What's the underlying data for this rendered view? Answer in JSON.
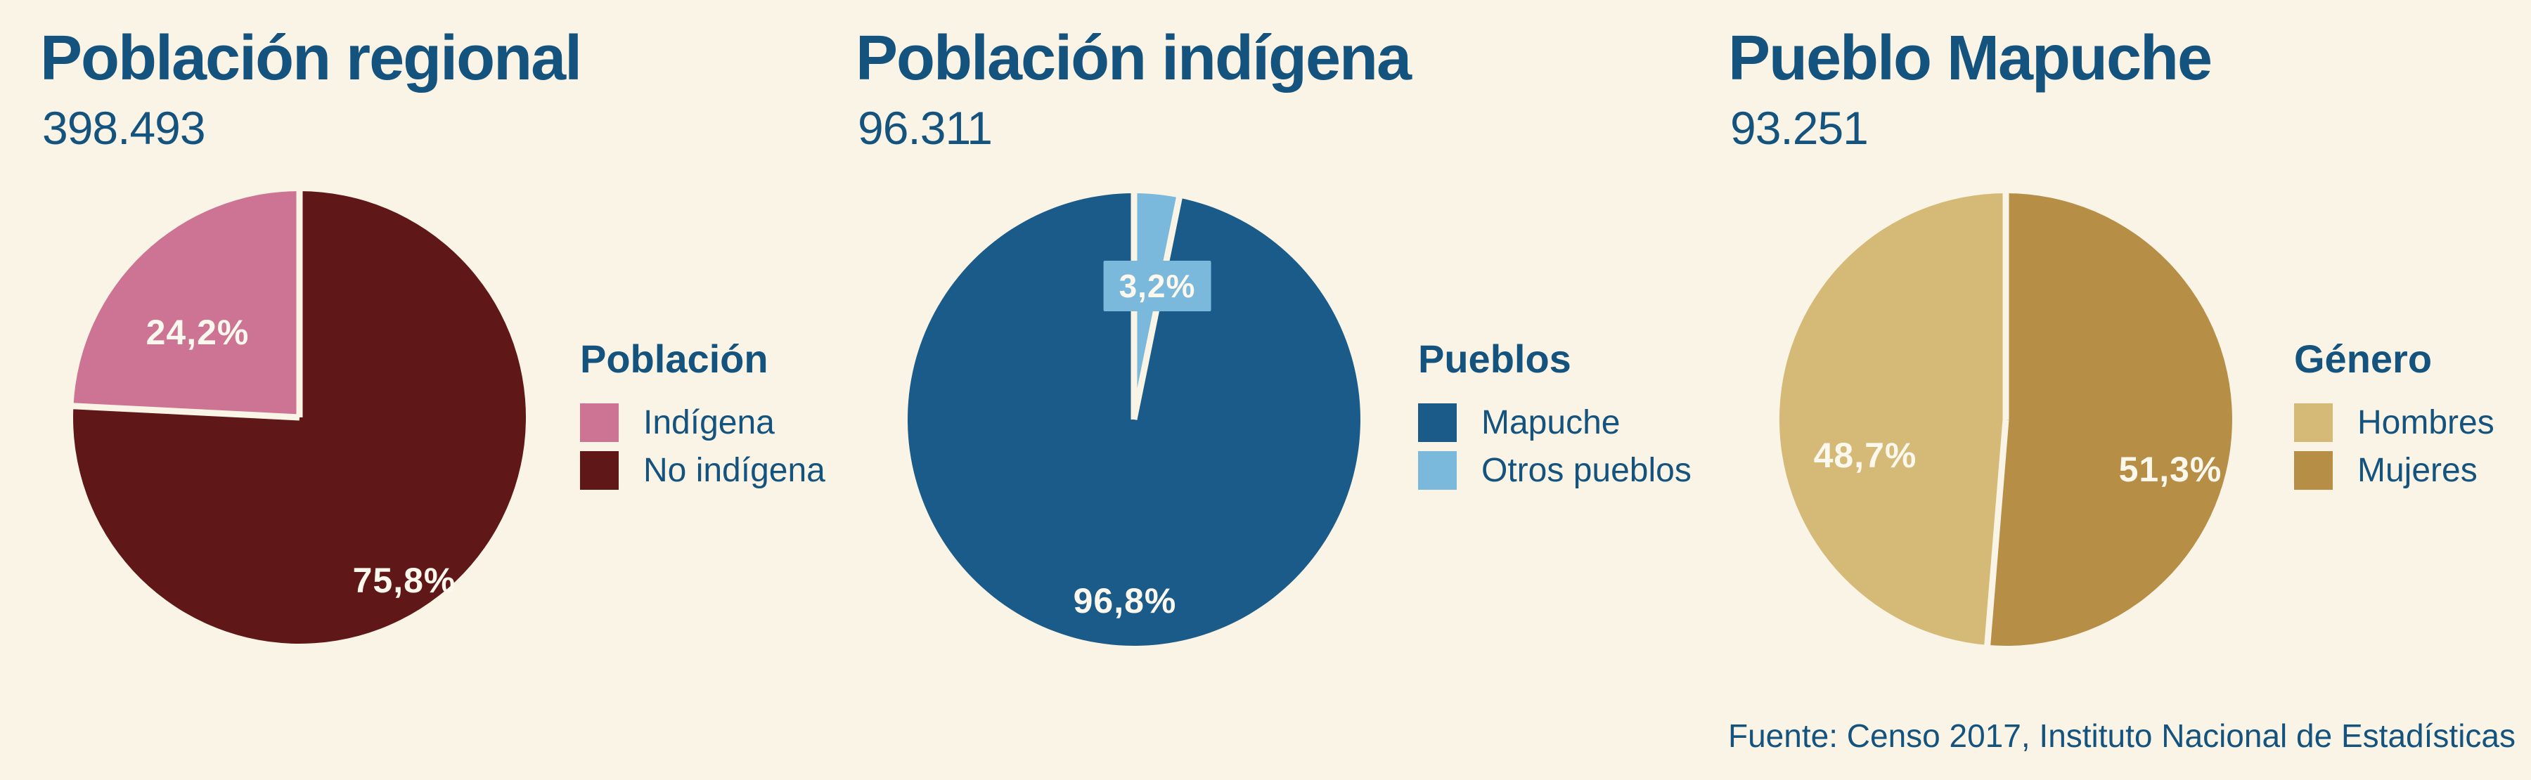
{
  "page": {
    "background": "#F9F4E5",
    "accent_blue": "#15537F",
    "label_text_color": "#FCF8ED",
    "footer": "Fuente: Censo 2017, Instituto Nacional de Estadísticas"
  },
  "chart_data": [
    {
      "type": "pie",
      "title": "Población regional",
      "total": "398.493",
      "legend_title": "Población",
      "start": "top",
      "direction": "clockwise",
      "categories": [
        "No indígena",
        "Indígena"
      ],
      "values": [
        75.8,
        24.2
      ],
      "slices": [
        {
          "label": "No indígena",
          "value": 75.8,
          "pct": "75,8%",
          "color": "#5F1718"
        },
        {
          "label": "Indígena",
          "value": 24.2,
          "pct": "24,2%",
          "color": "#CD7494"
        }
      ]
    },
    {
      "type": "pie",
      "title": "Población indígena",
      "total": "96.311",
      "legend_title": "Pueblos",
      "start": "top",
      "direction": "clockwise",
      "categories": [
        "Otros pueblos",
        "Mapuche"
      ],
      "values": [
        3.2,
        96.8
      ],
      "slices": [
        {
          "label": "Otros pueblos",
          "value": 3.2,
          "pct": "3,2%",
          "color": "#7AB8DC"
        },
        {
          "label": "Mapuche",
          "value": 96.8,
          "pct": "96,8%",
          "color": "#1A5B89"
        }
      ]
    },
    {
      "type": "pie",
      "title": "Pueblo Mapuche",
      "total": "93.251",
      "legend_title": "Género",
      "start": "top",
      "direction": "clockwise",
      "categories": [
        "Mujeres",
        "Hombres"
      ],
      "values": [
        51.3,
        48.7
      ],
      "slices": [
        {
          "label": "Mujeres",
          "value": 51.3,
          "pct": "51,3%",
          "color": "#B68E45"
        },
        {
          "label": "Hombres",
          "value": 48.7,
          "pct": "48,7%",
          "color": "#D5B977"
        }
      ]
    }
  ]
}
